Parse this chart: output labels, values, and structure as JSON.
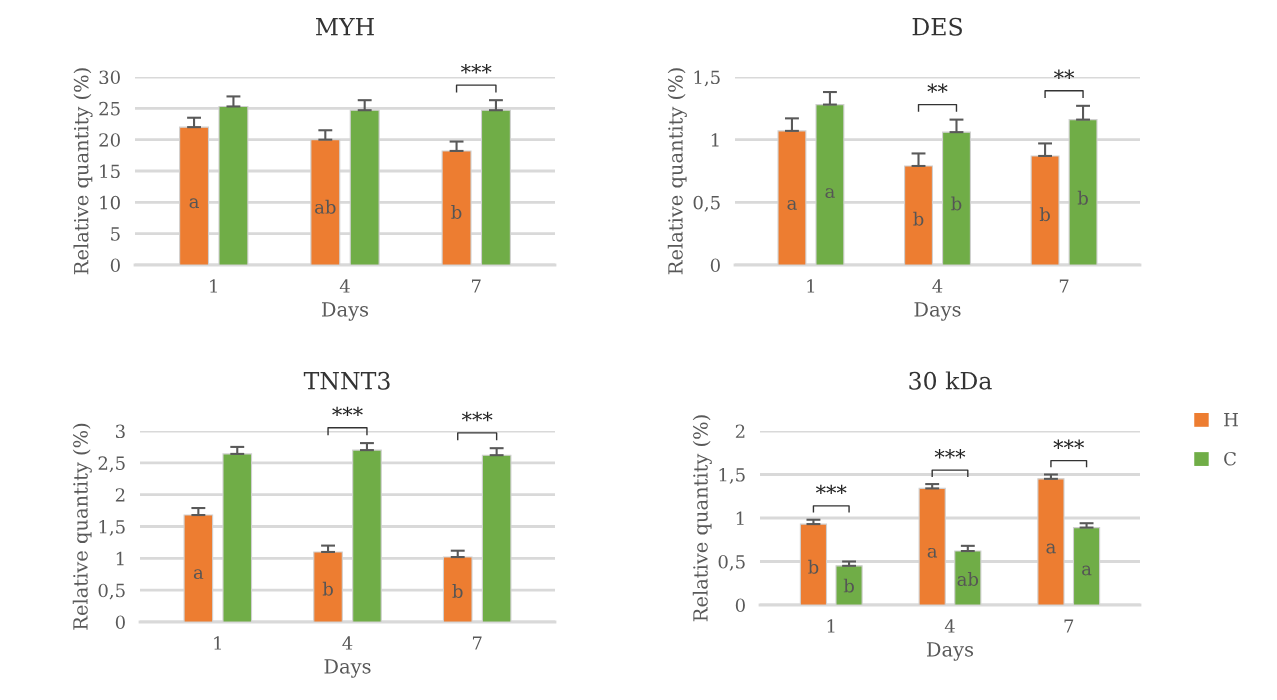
{
  "chart_data": [
    {
      "type": "bar",
      "title": "MYH",
      "xlabel": "Days",
      "ylabel": "Relative quantity (%)",
      "categories": [
        "1",
        "4",
        "7"
      ],
      "ylim": [
        0,
        30
      ],
      "yticks": [
        0,
        5,
        10,
        15,
        20,
        25,
        30
      ],
      "grid": "y",
      "legend": false,
      "series": [
        {
          "color": "#ed7d31",
          "values": [
            22,
            20,
            18.2
          ],
          "errors": [
            [
              22,
              23.5
            ],
            [
              20,
              21.5
            ],
            [
              18.2,
              19.7
            ]
          ],
          "value_labels": [
            "a",
            "ab",
            "b"
          ]
        },
        {
          "color": "#70ad47",
          "values": [
            25.3,
            24.7,
            24.7
          ],
          "errors": [
            [
              25.3,
              26.9
            ],
            [
              24.7,
              26.3
            ],
            [
              24.7,
              26.3
            ]
          ]
        }
      ],
      "annotations": [
        "***"
      ]
    },
    {
      "type": "bar",
      "title": "DES",
      "xlabel": "Days",
      "ylabel": "Relative quantity (%)",
      "categories": [
        "1",
        "4",
        "7"
      ],
      "ylim": [
        0,
        1.5
      ],
      "yticks": [
        0,
        {
          "value": 0.5,
          "label": "0,5"
        },
        1,
        {
          "value": 1.5,
          "label": "1,5"
        }
      ],
      "grid": "y",
      "legend": false,
      "series": [
        {
          "color": "#ed7d31",
          "values": [
            1.07,
            0.79,
            0.87
          ],
          "errors": [
            [
              1.07,
              1.17
            ],
            [
              0.79,
              0.89
            ],
            [
              0.87,
              0.97
            ]
          ],
          "value_labels": [
            "a",
            "b",
            "b"
          ]
        },
        {
          "color": "#70ad47",
          "values": [
            1.28,
            1.06,
            1.16
          ],
          "errors": [
            [
              1.28,
              1.38
            ],
            [
              1.06,
              1.16
            ],
            [
              1.16,
              1.27
            ]
          ],
          "value_labels": [
            "a",
            "b",
            "b"
          ]
        }
      ],
      "annotations": [
        "**",
        "**"
      ]
    },
    {
      "type": "bar",
      "title": "TNNT3",
      "xlabel": "Days",
      "ylabel": "Relative quantity (%)",
      "categories": [
        "1",
        "4",
        "7"
      ],
      "ylim": [
        0,
        3
      ],
      "yticks": [
        0,
        {
          "value": 0.5,
          "label": "0,5"
        },
        1,
        {
          "value": 1.5,
          "label": "1,5"
        },
        2,
        {
          "value": 2.5,
          "label": "2,5"
        },
        3
      ],
      "grid": "y",
      "legend": false,
      "series": [
        {
          "color": "#ed7d31",
          "values": [
            1.68,
            1.1,
            1.02
          ],
          "errors": [
            [
              1.68,
              1.79
            ],
            [
              1.1,
              1.2
            ],
            [
              1.02,
              1.12
            ]
          ],
          "value_labels": [
            "a",
            "b",
            "b"
          ]
        },
        {
          "color": "#70ad47",
          "values": [
            2.64,
            2.7,
            2.62
          ],
          "errors": [
            [
              2.64,
              2.75
            ],
            [
              2.7,
              2.81
            ],
            [
              2.62,
              2.73
            ]
          ]
        }
      ],
      "annotations": [
        "***",
        "***"
      ]
    },
    {
      "type": "bar",
      "title": "30 kDa",
      "xlabel": "Days",
      "ylabel": "Relative quantity (%)",
      "categories": [
        "1",
        "4",
        "7"
      ],
      "ylim": [
        0,
        2
      ],
      "yticks": [
        0,
        {
          "value": 0.5,
          "label": "0,5"
        },
        1,
        {
          "value": 1.5,
          "label": "1,5"
        },
        2
      ],
      "grid": "y",
      "legend": "right",
      "series": [
        {
          "name": "H",
          "color": "#ed7d31",
          "values": [
            0.93,
            1.34,
            1.45
          ],
          "errors": [
            [
              0.93,
              0.98
            ],
            [
              1.34,
              1.39
            ],
            [
              1.45,
              1.5
            ]
          ],
          "value_labels": [
            "b",
            "a",
            "a"
          ]
        },
        {
          "name": "C",
          "color": "#70ad47",
          "values": [
            0.45,
            0.62,
            0.89
          ],
          "errors": [
            [
              0.45,
              0.5
            ],
            [
              0.62,
              0.68
            ],
            [
              0.89,
              0.94
            ]
          ],
          "value_labels": [
            "b",
            "ab",
            "a"
          ]
        }
      ],
      "annotations": [
        "***",
        "***",
        "***"
      ]
    }
  ]
}
